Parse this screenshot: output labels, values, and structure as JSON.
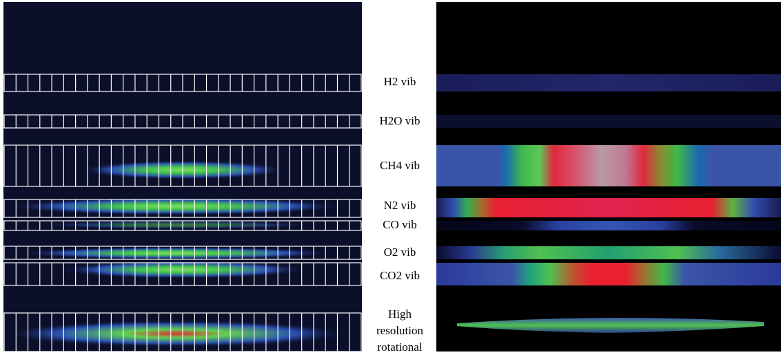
{
  "labels": [
    "H2 vib",
    "H2O vib",
    "CH4 vib",
    "N2 vib",
    "CO vib",
    "O2 vib",
    "CO2 vib"
  ],
  "last_label": [
    "High",
    "resolution",
    "rotational"
  ]
}
